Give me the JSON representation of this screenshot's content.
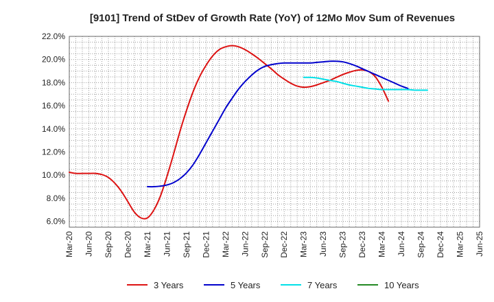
{
  "chart_data": {
    "type": "line",
    "title": "[9101]  Trend of StDev of Growth Rate (YoY) of 12Mo Mov Sum of Revenues",
    "xlabel": "",
    "ylabel": "",
    "ylim": [
      5.5,
      22.0
    ],
    "y_ticks": [
      6.0,
      8.0,
      10.0,
      12.0,
      14.0,
      16.0,
      18.0,
      20.0,
      22.0
    ],
    "y_tick_labels": [
      "6.0%",
      "8.0%",
      "10.0%",
      "12.0%",
      "14.0%",
      "16.0%",
      "18.0%",
      "20.0%",
      "22.0%"
    ],
    "x_tick_labels": [
      "Mar-20",
      "Jun-20",
      "Sep-20",
      "Dec-20",
      "Mar-21",
      "Jun-21",
      "Sep-21",
      "Dec-21",
      "Mar-22",
      "Jun-22",
      "Sep-22",
      "Dec-22",
      "Mar-23",
      "Jun-23",
      "Sep-23",
      "Dec-23",
      "Mar-24",
      "Jun-24",
      "Sep-24",
      "Dec-24",
      "Mar-25",
      "Jun-25"
    ],
    "grid": true,
    "legend_position": "bottom",
    "series": [
      {
        "name": "3 Years",
        "color": "#dd1111",
        "start_index": 0,
        "values": [
          10.25,
          10.15,
          10.15,
          10.15,
          10.15,
          10.05,
          9.8,
          9.3,
          8.6,
          7.7,
          6.8,
          6.3,
          6.3,
          7.0,
          8.2,
          9.9,
          11.8,
          13.8,
          15.6,
          17.2,
          18.5,
          19.5,
          20.3,
          20.85,
          21.1,
          21.2,
          21.1,
          20.85,
          20.5,
          20.1,
          19.65,
          19.2,
          18.7,
          18.3,
          17.95,
          17.7,
          17.6,
          17.65,
          17.8,
          18.0,
          18.2,
          18.45,
          18.7,
          18.9,
          19.05,
          19.1,
          18.95,
          18.5,
          17.6,
          16.4
        ]
      },
      {
        "name": "5 Years",
        "color": "#0000cc",
        "start_index": 12,
        "values": [
          9.0,
          9.0,
          9.05,
          9.15,
          9.35,
          9.7,
          10.2,
          10.9,
          11.8,
          12.8,
          13.8,
          14.8,
          15.8,
          16.65,
          17.45,
          18.1,
          18.65,
          19.1,
          19.4,
          19.55,
          19.65,
          19.7,
          19.7,
          19.7,
          19.7,
          19.7,
          19.75,
          19.8,
          19.85,
          19.85,
          19.8,
          19.65,
          19.45,
          19.2,
          18.95,
          18.7,
          18.45,
          18.2,
          17.95,
          17.7,
          17.5
        ]
      },
      {
        "name": "7 Years",
        "color": "#00e0e8",
        "start_index": 36,
        "values": [
          18.45,
          18.45,
          18.4,
          18.3,
          18.2,
          18.1,
          17.95,
          17.8,
          17.7,
          17.6,
          17.5,
          17.45,
          17.4,
          17.4,
          17.4,
          17.4,
          17.4,
          17.35,
          17.35,
          17.35
        ]
      },
      {
        "name": "10 Years",
        "color": "#228822",
        "start_index": 0,
        "values": []
      }
    ]
  }
}
